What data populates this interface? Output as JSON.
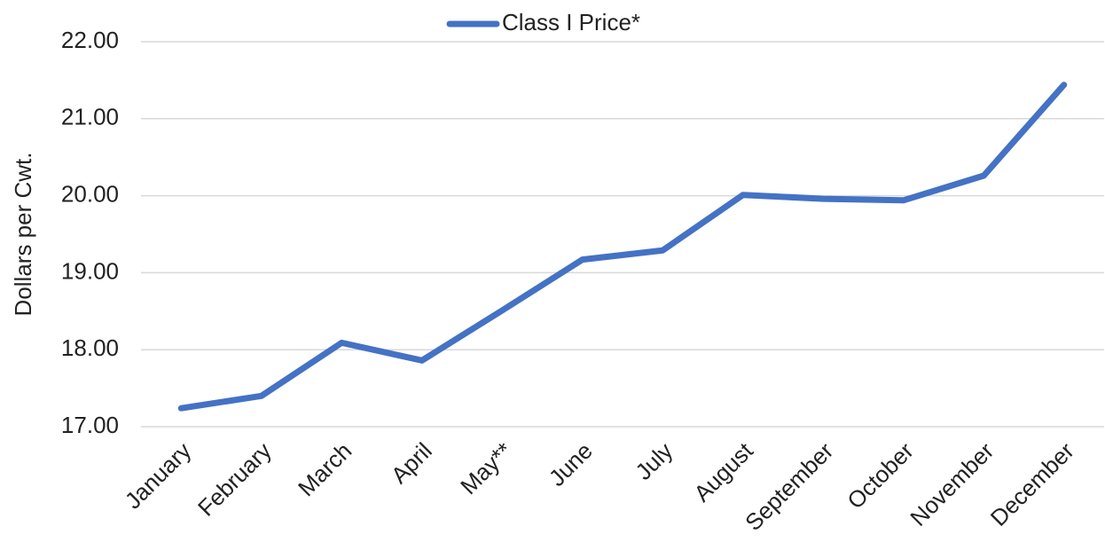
{
  "chart_data": {
    "type": "line",
    "y_axis_label": "Dollars per Cwt.",
    "categories": [
      "January",
      "February",
      "March",
      "April",
      "May**",
      "June",
      "July",
      "August",
      "September",
      "October",
      "November",
      "December"
    ],
    "series": [
      {
        "name": "Class I Price*",
        "color": "#4472c4",
        "values": [
          17.24,
          17.4,
          18.09,
          17.86,
          18.51,
          19.17,
          19.29,
          20.01,
          19.96,
          19.94,
          20.26,
          21.44
        ]
      }
    ],
    "ylim": [
      17,
      22
    ],
    "yticks": [
      {
        "value": 17,
        "label": "17.00"
      },
      {
        "value": 18,
        "label": "18.00"
      },
      {
        "value": 19,
        "label": "19.00"
      },
      {
        "value": 20,
        "label": "20.00"
      },
      {
        "value": 21,
        "label": "21.00"
      },
      {
        "value": 22,
        "label": "22.00"
      }
    ],
    "grid": true
  }
}
